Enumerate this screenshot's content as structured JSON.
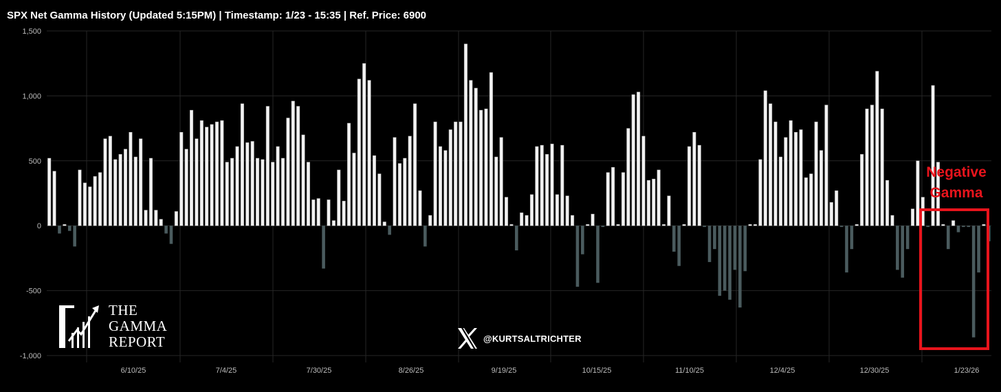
{
  "title": "SPX Net Gamma History (Updated 5:15PM) | Timestamp: 1/23 - 15:35  | Ref. Price: 6900",
  "logo": {
    "line1": "THE",
    "line2": "GAMMA",
    "line3": "REPORT",
    "icon": "growth-chart-icon"
  },
  "social": {
    "icon": "x-logo-icon",
    "handle": "@KURTSALTRICHTER"
  },
  "annotation": {
    "line1": "Negative",
    "line2": "Gamma",
    "color": "#e8141c"
  },
  "colors": {
    "positive": "#f2f2f2",
    "negative": "#4a5b5e",
    "background": "#000000",
    "grid": "#262626"
  },
  "chart_data": {
    "type": "bar",
    "title": "SPX Net Gamma History (Updated 5:15PM) | Timestamp: 1/23 - 15:35  | Ref. Price: 6900",
    "xlabel": "",
    "ylabel": "",
    "ylim": [
      -1000,
      1500
    ],
    "yticks": [
      -1000,
      -500,
      0,
      500,
      1000,
      1500
    ],
    "ytick_labels": [
      "-1,000",
      "-500",
      "0",
      "500",
      "1,000",
      "1,500"
    ],
    "xtick_labels": [
      "6/10/25",
      "7/4/25",
      "7/30/25",
      "8/26/25",
      "9/19/25",
      "10/15/25",
      "11/10/25",
      "12/4/25",
      "12/30/25",
      "1/23/26"
    ],
    "grid": true,
    "series": [
      {
        "values": [
          520,
          420,
          -60,
          10,
          -40,
          -160,
          430,
          330,
          300,
          380,
          410,
          670,
          690,
          510,
          550,
          590,
          720,
          530,
          670,
          120,
          520,
          120,
          50,
          -60,
          -140,
          110,
          720,
          590,
          890,
          670,
          810,
          760,
          780,
          800,
          810,
          490,
          520,
          610,
          940,
          640,
          650,
          520,
          510,
          920,
          490,
          610,
          520,
          830,
          960,
          920,
          700,
          490,
          200,
          210,
          -330,
          200,
          40,
          430,
          190,
          790,
          560,
          1130,
          1250,
          1120,
          540,
          400,
          30,
          -70,
          680,
          480,
          520,
          690,
          940,
          270,
          -160,
          80,
          800,
          610,
          580,
          740,
          800,
          800,
          1400,
          1120,
          1060,
          890,
          900,
          1180,
          530,
          680,
          220,
          10,
          -190,
          100,
          80,
          240,
          610,
          620,
          550,
          630,
          240,
          620,
          230,
          80,
          -470,
          -220,
          10,
          90,
          -440,
          -10,
          410,
          450,
          10,
          410,
          750,
          1010,
          1030,
          690,
          350,
          360,
          430,
          10,
          230,
          -200,
          -310,
          10,
          610,
          720,
          620,
          -10,
          -280,
          -180,
          -540,
          -500,
          -570,
          -340,
          -630,
          -350,
          10,
          10,
          510,
          1040,
          940,
          800,
          530,
          680,
          810,
          720,
          740,
          370,
          400,
          800,
          580,
          930,
          180,
          270,
          -10,
          -360,
          -180,
          10,
          550,
          900,
          930,
          1190,
          900,
          350,
          80,
          -340,
          -400,
          -180,
          130,
          500,
          220,
          -10,
          1080,
          490,
          10,
          -180,
          40,
          -50,
          -10,
          -10,
          -860,
          -360,
          10,
          -120
        ]
      }
    ]
  }
}
